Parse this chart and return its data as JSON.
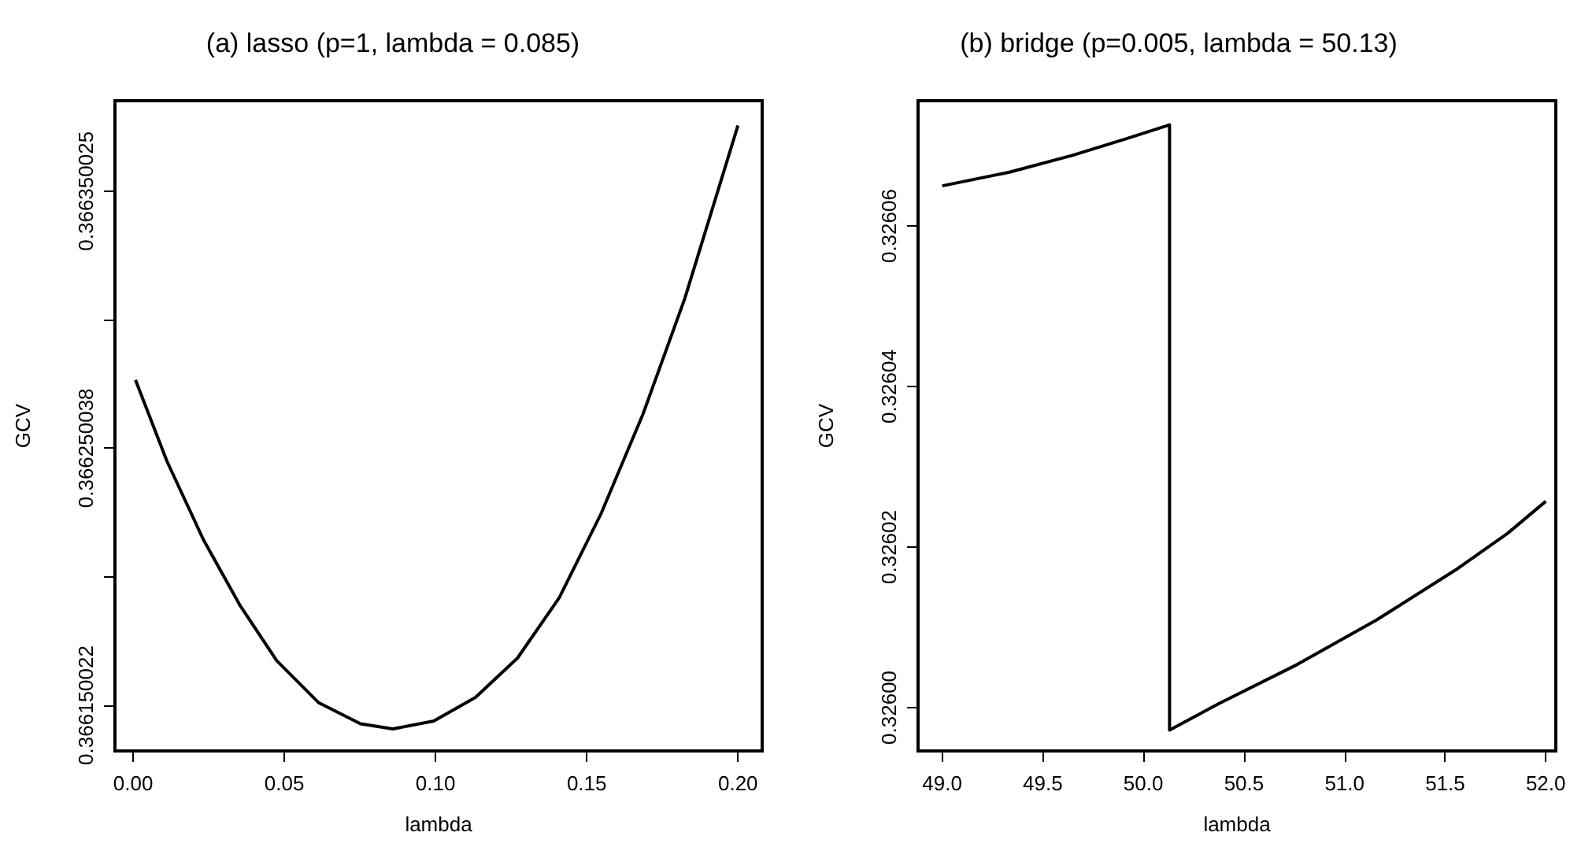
{
  "chart_data": [
    {
      "type": "line",
      "title": "(a) lasso (p=1, lambda = 0.085)",
      "xlabel": "lambda",
      "ylabel": "GCV",
      "xlim": [
        -0.006,
        0.208
      ],
      "ylim": [
        0.36613226,
        0.36638518
      ],
      "xticks": [
        {
          "value": 0,
          "label": "0.00"
        },
        {
          "value": 0.05,
          "label": "0.05"
        },
        {
          "value": 0.1,
          "label": "0.10"
        },
        {
          "value": 0.15,
          "label": "0.15"
        },
        {
          "value": 0.2,
          "label": "0.20"
        }
      ],
      "yticks": [
        0.366150022,
        {
          "value": 0.36620003,
          "label": null
        },
        0.366250038,
        {
          "value": 0.3663000315,
          "label": null
        },
        0.366350025
      ],
      "series": [
        {
          "color": "#000000",
          "x": [
            0.0008,
            0.0112,
            0.0233,
            0.0354,
            0.0475,
            0.0614,
            0.0752,
            0.0859,
            0.0994,
            0.1132,
            0.1271,
            0.1409,
            0.1547,
            0.1686,
            0.1824,
            0.2
          ],
          "values": [
            0.36627654,
            0.36624494,
            0.36621432,
            0.36618878,
            0.36616734,
            0.366151,
            0.36614285,
            0.36614083,
            0.36614389,
            0.36615308,
            0.36616839,
            0.36619185,
            0.36622448,
            0.36626331,
            0.3663082,
            0.36637557
          ]
        }
      ]
    },
    {
      "type": "line",
      "title": "(b) bridge (p=0.005, lambda = 50.13)",
      "xlabel": "lambda",
      "ylabel": "GCV",
      "xlim": [
        48.88,
        52.05
      ],
      "ylim": [
        0.3259946,
        0.3260756
      ],
      "xticks": [
        {
          "value": 49,
          "label": "49.0"
        },
        {
          "value": 49.5,
          "label": "49.5"
        },
        {
          "value": 50,
          "label": "50.0"
        },
        {
          "value": 50.5,
          "label": "50.5"
        },
        {
          "value": 51,
          "label": "51.0"
        },
        {
          "value": 51.5,
          "label": "51.5"
        },
        {
          "value": 52,
          "label": "52.0"
        }
      ],
      "yticks": [
        {
          "value": 0.326,
          "label": "0.32600"
        },
        {
          "value": 0.32602,
          "label": "0.32602"
        },
        {
          "value": 0.32604,
          "label": "0.32604"
        },
        {
          "value": 0.32606,
          "label": "0.32606"
        }
      ],
      "series": [
        {
          "color": "#000000",
          "x": [
            49.0,
            49.334,
            49.647,
            49.907,
            50.13,
            50.13,
            50.376,
            50.767,
            51.158,
            51.549,
            51.81,
            52.0
          ],
          "values": [
            0.326065,
            0.3260667,
            0.3260688,
            0.3260708,
            0.3260726,
            0.3259972,
            0.3260005,
            0.3260054,
            0.3260109,
            0.3260171,
            0.3260217,
            0.3260257
          ]
        }
      ]
    }
  ]
}
